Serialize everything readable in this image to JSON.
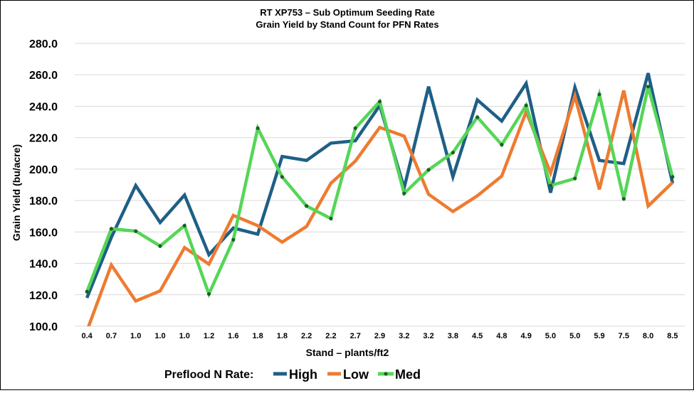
{
  "chart_data": {
    "type": "line",
    "title": "RT XP753 – Sub Optimum Seeding Rate",
    "subtitle": "Grain Yield by Stand Count for PFN Rates",
    "xlabel": "Stand – plants/ft2",
    "ylabel": "Grain Yield (bu/acre)",
    "ylim": [
      100.0,
      280.0
    ],
    "ytick_values": [
      100,
      120,
      140,
      160,
      180,
      200,
      220,
      240,
      260,
      280
    ],
    "ytick_labels": [
      "100.0",
      "120.0",
      "140.0",
      "160.0",
      "180.0",
      "200.0",
      "220.0",
      "240.0",
      "260.0",
      "280.0"
    ],
    "grid": true,
    "legend_title": "Preflood N Rate:",
    "legend_position": "bottom",
    "categories": [
      "0.4",
      "0.7",
      "1.0",
      "1.0",
      "1.0",
      "1.2",
      "1.6",
      "1.8",
      "1.8",
      "2.2",
      "2.2",
      "2.7",
      "2.9",
      "3.2",
      "3.2",
      "3.8",
      "4.5",
      "4.8",
      "4.9",
      "5.0",
      "5.0",
      "5.9",
      "7.5",
      "8.0",
      "8.5"
    ],
    "series": [
      {
        "name": "High",
        "color": "#1f5f86",
        "markers": false,
        "values": [
          118.0,
          156.5,
          189.5,
          166.0,
          183.5,
          145.5,
          162.5,
          158.5,
          208.0,
          205.5,
          216.5,
          218.0,
          240.5,
          188.0,
          252.5,
          195.0,
          244.0,
          230.5,
          254.5,
          185.0,
          252.0,
          205.5,
          203.5,
          261.0,
          191.0
        ]
      },
      {
        "name": "Low",
        "color": "#ee7b30",
        "markers": false,
        "values": [
          97.0,
          139.0,
          116.0,
          122.5,
          150.0,
          139.5,
          170.5,
          164.0,
          153.5,
          163.5,
          191.0,
          205.0,
          226.5,
          221.0,
          184.0,
          173.0,
          183.0,
          195.5,
          236.5,
          197.5,
          246.5,
          187.0,
          250.0,
          176.5,
          191.5
        ]
      },
      {
        "name": "Med",
        "color": "#55d657",
        "markers": true,
        "marker_color": "#1e5d2a",
        "values": [
          122.0,
          162.0,
          160.5,
          151.0,
          164.0,
          120.5,
          155.0,
          226.0,
          195.0,
          176.5,
          168.5,
          226.0,
          243.0,
          184.5,
          199.5,
          210.5,
          233.0,
          215.5,
          240.5,
          189.5,
          194.0,
          247.5,
          181.0,
          252.5,
          195.0
        ]
      }
    ]
  }
}
